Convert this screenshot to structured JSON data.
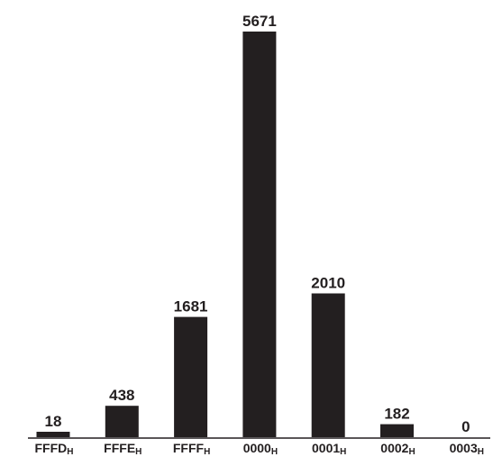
{
  "chart_data": {
    "type": "bar",
    "title": "",
    "xlabel": "",
    "ylabel": "",
    "ylim": [
      0,
      5671
    ],
    "grid": false,
    "legend": "none",
    "bar_color": "#231f20",
    "categories": [
      {
        "main": "FFFD",
        "sub": "H"
      },
      {
        "main": "FFFE",
        "sub": "H"
      },
      {
        "main": "FFFF",
        "sub": "H"
      },
      {
        "main": "0000",
        "sub": "H"
      },
      {
        "main": "0001",
        "sub": "H"
      },
      {
        "main": "0002",
        "sub": "H"
      },
      {
        "main": "0003",
        "sub": "H"
      }
    ],
    "values": [
      18,
      438,
      1681,
      5671,
      2010,
      182,
      0
    ],
    "value_labels": [
      "18",
      "438",
      "1681",
      "5671",
      "2010",
      "182",
      "0"
    ]
  }
}
